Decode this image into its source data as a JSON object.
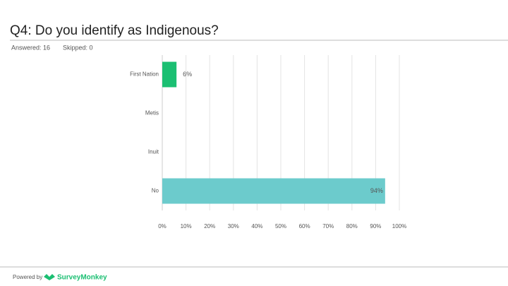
{
  "header": {
    "title": "Q4: Do you identify as Indigenous?",
    "answered": "Answered: 16",
    "skipped": "Skipped: 0"
  },
  "footer": {
    "powered_by": "Powered by",
    "brand": "SurveyMonkey"
  },
  "chart_data": {
    "type": "hbar",
    "categories": [
      "First Nation",
      "Metis",
      "Inuit",
      "No"
    ],
    "values": [
      6,
      0,
      0,
      94
    ],
    "value_labels": [
      "6%",
      null,
      null,
      "94%"
    ],
    "colors": [
      "#1bbf72",
      "#1bbf72",
      "#1bbf72",
      "#6ccbcc"
    ],
    "xlim": [
      0,
      100
    ],
    "xticks": [
      {
        "value": 0,
        "label": "0%"
      },
      {
        "value": 10,
        "label": "10%"
      },
      {
        "value": 20,
        "label": "20%"
      },
      {
        "value": 30,
        "label": "30%"
      },
      {
        "value": 40,
        "label": "40%"
      },
      {
        "value": 50,
        "label": "50%"
      },
      {
        "value": 60,
        "label": "60%"
      },
      {
        "value": 70,
        "label": "70%"
      },
      {
        "value": 80,
        "label": "80%"
      },
      {
        "value": 90,
        "label": "90%"
      },
      {
        "value": 100,
        "label": "100%"
      }
    ],
    "grid": true
  }
}
